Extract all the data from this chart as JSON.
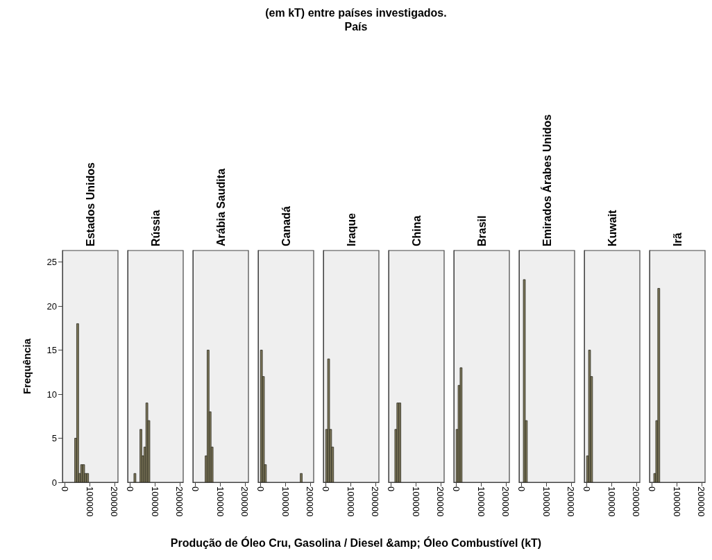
{
  "chart_data": [
    {
      "type": "histogram",
      "title": "Estados Unidos",
      "annotations": [
        "(em kT) entre países investigados.",
        "País"
      ],
      "xlabel": "Produção de Óleo Cru, Gasolina / Diesel &amp; Óleo Combustível  (kT)",
      "ylabel": "Frequência",
      "bins": [
        40000,
        48000,
        56000,
        64000,
        72000,
        80000,
        88000,
        96000
      ],
      "values": [
        5,
        18,
        1,
        2,
        2,
        1,
        1
      ],
      "color": "#7b7558",
      "xlim": [
        -9000,
        214000
      ],
      "xticks": [
        0,
        100000,
        200000
      ],
      "ylim": [
        0,
        26.3
      ],
      "yticks": [
        0,
        5,
        10,
        15,
        20,
        25
      ]
    },
    {
      "type": "histogram",
      "title": "Rússia",
      "bins": [
        16000,
        24000,
        32000,
        40000,
        48000,
        56000,
        64000,
        72000,
        80000
      ],
      "values": [
        1,
        0,
        0,
        6,
        3,
        4,
        9,
        7
      ],
      "color": "#7b7558",
      "xlim": [
        -9000,
        214000
      ],
      "xticks": [
        0,
        100000,
        200000
      ],
      "ylim": [
        0,
        26.3
      ],
      "yticks": [
        0,
        5,
        10,
        15,
        20,
        25
      ],
      "tick_labels": "x"
    },
    {
      "type": "histogram",
      "title": "Arábia Saudita",
      "bins": [
        40000,
        48000,
        56000,
        64000,
        72000
      ],
      "values": [
        3,
        15,
        8,
        4
      ],
      "color": "#7b7558",
      "xlim": [
        -9000,
        214000
      ],
      "xticks": [
        0,
        100000,
        200000
      ],
      "ylim": [
        0,
        26.3
      ],
      "yticks": [
        0,
        5,
        10,
        15,
        20,
        25
      ],
      "tick_labels": "x"
    },
    {
      "type": "histogram",
      "title": "Canadá",
      "bins": [
        0,
        8000,
        16000,
        24000,
        32000,
        40000,
        48000,
        56000,
        64000,
        72000,
        80000,
        88000,
        96000,
        104000,
        112000,
        120000,
        128000,
        136000,
        144000,
        152000,
        160000,
        168000
      ],
      "values": [
        15,
        12,
        2,
        0,
        0,
        0,
        0,
        0,
        0,
        0,
        0,
        0,
        0,
        0,
        0,
        0,
        0,
        0,
        0,
        0,
        1
      ],
      "color": "#7b7558",
      "xlim": [
        -9000,
        214000
      ],
      "xticks": [
        0,
        100000,
        200000
      ],
      "ylim": [
        0,
        26.3
      ],
      "yticks": [
        0,
        5,
        10,
        15,
        20,
        25
      ],
      "tick_labels": "x"
    },
    {
      "type": "histogram",
      "title": "Iraque",
      "bins": [
        0,
        8000,
        16000,
        24000,
        32000
      ],
      "values": [
        6,
        14,
        6,
        4
      ],
      "color": "#7b7558",
      "xlim": [
        -9000,
        214000
      ],
      "xticks": [
        0,
        100000,
        200000
      ],
      "ylim": [
        0,
        26.3
      ],
      "yticks": [
        0,
        5,
        10,
        15,
        20,
        25
      ],
      "tick_labels": "x"
    },
    {
      "type": "histogram",
      "title": "China",
      "bins": [
        16000,
        24000,
        32000,
        40000
      ],
      "values": [
        6,
        9,
        9
      ],
      "color": "#7b7558",
      "xlim": [
        -9000,
        214000
      ],
      "xticks": [
        0,
        100000,
        200000
      ],
      "ylim": [
        0,
        26.3
      ],
      "yticks": [
        0,
        5,
        10,
        15,
        20,
        25
      ],
      "tick_labels": "x"
    },
    {
      "type": "histogram",
      "title": "Brasil",
      "bins": [
        0,
        8000,
        16000,
        24000
      ],
      "values": [
        6,
        11,
        13
      ],
      "color": "#7b7558",
      "xlim": [
        -9000,
        214000
      ],
      "xticks": [
        0,
        100000,
        200000
      ],
      "ylim": [
        0,
        26.3
      ],
      "yticks": [
        0,
        5,
        10,
        15,
        20,
        25
      ],
      "tick_labels": "x"
    },
    {
      "type": "histogram",
      "title": "Emirados Árabes Unidos",
      "bins": [
        8000,
        16000,
        24000
      ],
      "values": [
        23,
        7
      ],
      "color": "#7b7558",
      "xlim": [
        -9000,
        214000
      ],
      "xticks": [
        0,
        100000,
        200000
      ],
      "ylim": [
        0,
        26.3
      ],
      "yticks": [
        0,
        5,
        10,
        15,
        20,
        25
      ],
      "tick_labels": "x"
    },
    {
      "type": "histogram",
      "title": "Kuwait",
      "bins": [
        0,
        8000,
        16000,
        24000
      ],
      "values": [
        3,
        15,
        12
      ],
      "color": "#7b7558",
      "xlim": [
        -9000,
        214000
      ],
      "xticks": [
        0,
        100000,
        200000
      ],
      "ylim": [
        0,
        26.3
      ],
      "yticks": [
        0,
        5,
        10,
        15,
        20,
        25
      ],
      "tick_labels": "x"
    },
    {
      "type": "histogram",
      "title": "Irã",
      "bins": [
        8000,
        16000,
        24000,
        32000
      ],
      "values": [
        1,
        7,
        22
      ],
      "color": "#7b7558",
      "xlim": [
        -9000,
        214000
      ],
      "xticks": [
        0,
        100000,
        200000
      ],
      "ylim": [
        0,
        26.3
      ],
      "yticks": [
        0,
        5,
        10,
        15,
        20,
        25
      ],
      "tick_labels": "x"
    }
  ]
}
